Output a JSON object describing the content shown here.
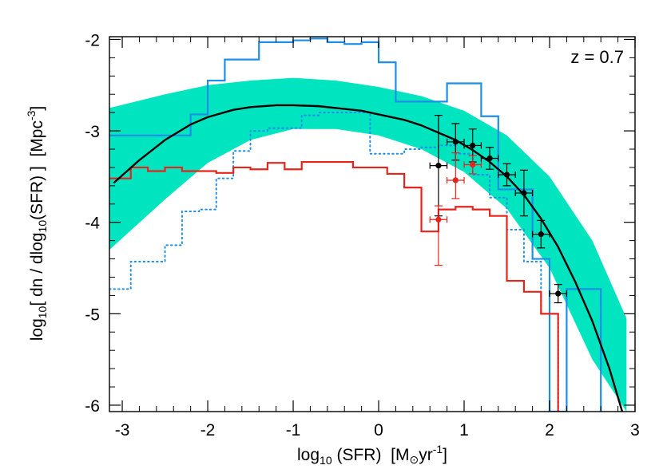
{
  "chart_data": {
    "type": "line",
    "annotation": "z = 0.7",
    "xlabel": {
      "pre": "log",
      "pre_sub": "10",
      "mid": " (SFR)  [M",
      "sun": "⊙",
      "post": "yr",
      "post_sup": "-1",
      "end": "]"
    },
    "ylabel": {
      "pre": "log",
      "pre_sub": "10",
      "mid1": "[ dn / dlog",
      "mid_sub": "10",
      "mid2": "(SFR) ]  [Mpc",
      "sup": "-3",
      "end": "]"
    },
    "xlim": [
      -3.15,
      3.0
    ],
    "ylim": [
      -6.07,
      -1.97
    ],
    "xticks": [
      -3,
      -2,
      -1,
      0,
      1,
      2,
      3
    ],
    "xtick_labels": [
      "-3",
      "-2",
      "-1",
      "0",
      "1",
      "2",
      "3"
    ],
    "yticks": [
      -6,
      -5,
      -4,
      -3,
      -2
    ],
    "ytick_labels": [
      "-6",
      "-5",
      "-4",
      "-3",
      "-2"
    ],
    "colors": {
      "band": "#00e5c0",
      "fit": "#000000",
      "blue": "#1e8ee8",
      "red": "#e8231a",
      "black_points": "#000000",
      "red_points": "#e8231a"
    },
    "band": {
      "x": [
        -3.15,
        -2.5,
        -2.0,
        -1.5,
        -1.0,
        -0.5,
        0.0,
        0.5,
        1.0,
        1.5,
        2.0,
        2.5,
        2.9
      ],
      "upper": [
        -2.75,
        -2.6,
        -2.5,
        -2.45,
        -2.42,
        -2.45,
        -2.52,
        -2.62,
        -2.78,
        -3.05,
        -3.5,
        -4.2,
        -5.05
      ],
      "lower": [
        -4.3,
        -3.75,
        -3.35,
        -3.1,
        -2.98,
        -2.98,
        -3.05,
        -3.2,
        -3.45,
        -3.85,
        -4.5,
        -5.5,
        -6.07
      ]
    },
    "series": [
      {
        "kind": "fit",
        "x": [
          -3.1,
          -2.8,
          -2.5,
          -2.2,
          -2.0,
          -1.7,
          -1.5,
          -1.2,
          -1.0,
          -0.7,
          -0.5,
          -0.2,
          0.0,
          0.3,
          0.5,
          0.7,
          0.9,
          1.1,
          1.3,
          1.5,
          1.7,
          1.9,
          2.1,
          2.3,
          2.5,
          2.7,
          2.85
        ],
        "y": [
          -3.57,
          -3.32,
          -3.1,
          -2.93,
          -2.85,
          -2.77,
          -2.74,
          -2.72,
          -2.72,
          -2.73,
          -2.75,
          -2.78,
          -2.82,
          -2.88,
          -2.94,
          -3.02,
          -3.1,
          -3.21,
          -3.34,
          -3.5,
          -3.7,
          -3.96,
          -4.27,
          -4.65,
          -5.08,
          -5.6,
          -6.07
        ]
      },
      {
        "kind": "step",
        "style": "solid",
        "color_key": "blue",
        "edges": [
          -3.15,
          -2.9,
          -2.6,
          -2.4,
          -2.2,
          -2.0,
          -1.8,
          -1.6,
          -1.4,
          -1.2,
          -1.0,
          -0.8,
          -0.6,
          -0.4,
          -0.2,
          0.0,
          0.2,
          0.4,
          0.6,
          0.8,
          1.0,
          1.2,
          1.4,
          1.6,
          1.8,
          2.0,
          2.2,
          2.4,
          2.6
        ],
        "values": [
          -3.05,
          -3.05,
          -3.05,
          -3.05,
          -2.82,
          -2.45,
          -2.22,
          -2.22,
          -2.03,
          -2.03,
          -2.01,
          -1.99,
          -2.03,
          -2.05,
          -2.03,
          -2.25,
          -2.68,
          -2.68,
          -2.68,
          -2.48,
          -2.48,
          -2.84,
          -3.64,
          -3.64,
          -4.4,
          -6.07,
          -4.73,
          -4.73,
          -6.07
        ]
      },
      {
        "kind": "step",
        "style": "dotted",
        "color_key": "blue",
        "edges": [
          -3.15,
          -2.9,
          -2.7,
          -2.5,
          -2.3,
          -2.1,
          -1.9,
          -1.7,
          -1.5,
          -1.3,
          -1.1,
          -0.9,
          -0.7,
          -0.5,
          -0.3,
          -0.1,
          0.1,
          0.3,
          0.5,
          0.7,
          0.9,
          1.1,
          1.3,
          1.5,
          1.7,
          1.9,
          2.1
        ],
        "values": [
          -4.73,
          -4.43,
          -4.43,
          -4.25,
          -3.88,
          -3.86,
          -3.52,
          -3.22,
          -3.0,
          -2.97,
          -2.97,
          -2.83,
          -2.8,
          -2.8,
          -2.8,
          -3.25,
          -3.25,
          -3.2,
          -3.18,
          -3.16,
          -3.25,
          -3.48,
          -3.73,
          -4.08,
          -4.43,
          -5.0,
          -6.07
        ]
      },
      {
        "kind": "step",
        "style": "solid",
        "color_key": "red",
        "edges": [
          -3.15,
          -2.9,
          -2.7,
          -2.5,
          -2.3,
          -2.1,
          -1.9,
          -1.7,
          -1.5,
          -1.3,
          -1.1,
          -0.9,
          -0.7,
          -0.5,
          -0.3,
          -0.1,
          0.1,
          0.3,
          0.5,
          0.7,
          0.9,
          1.1,
          1.3,
          1.5,
          1.7,
          1.9,
          2.1
        ],
        "values": [
          -3.52,
          -3.4,
          -3.44,
          -3.4,
          -3.44,
          -3.44,
          -3.46,
          -3.4,
          -3.42,
          -3.35,
          -3.42,
          -3.34,
          -3.34,
          -3.34,
          -3.4,
          -3.4,
          -3.47,
          -3.62,
          -4.1,
          -3.86,
          -3.83,
          -3.86,
          -3.93,
          -4.64,
          -4.76,
          -5.0,
          -6.07
        ]
      }
    ],
    "points": [
      {
        "color_key": "black_points",
        "x": 0.7,
        "y": -3.38,
        "xerr": 0.1,
        "yerr_lo": 0.55,
        "yerr_hi": 0.55
      },
      {
        "color_key": "black_points",
        "x": 0.9,
        "y": -3.12,
        "xerr": 0.1,
        "yerr_lo": 0.2,
        "yerr_hi": 0.2
      },
      {
        "color_key": "black_points",
        "x": 1.1,
        "y": -3.16,
        "xerr": 0.1,
        "yerr_lo": 0.18,
        "yerr_hi": 0.18
      },
      {
        "color_key": "black_points",
        "x": 1.3,
        "y": -3.3,
        "xerr": 0.1,
        "yerr_lo": 0.12,
        "yerr_hi": 0.12
      },
      {
        "color_key": "black_points",
        "x": 1.5,
        "y": -3.48,
        "xerr": 0.1,
        "yerr_lo": 0.12,
        "yerr_hi": 0.12
      },
      {
        "color_key": "black_points",
        "x": 1.7,
        "y": -3.68,
        "xerr": 0.1,
        "yerr_lo": 0.25,
        "yerr_hi": 0.25
      },
      {
        "color_key": "black_points",
        "x": 1.9,
        "y": -4.13,
        "xerr": 0.1,
        "yerr_lo": 0.15,
        "yerr_hi": 0.15
      },
      {
        "color_key": "black_points",
        "x": 2.1,
        "y": -4.78,
        "xerr": 0.1,
        "yerr_lo": 0.1,
        "yerr_hi": 0.1
      },
      {
        "color_key": "red_points",
        "x": 0.7,
        "y": -3.97,
        "xerr": 0.1,
        "yerr_lo": 0.5,
        "yerr_hi": 0.15
      },
      {
        "color_key": "red_points",
        "x": 0.9,
        "y": -3.54,
        "xerr": 0.1,
        "yerr_lo": 0.2,
        "yerr_hi": 0.3
      },
      {
        "color_key": "red_points",
        "x": 1.1,
        "y": -3.37,
        "xerr": 0.1,
        "yerr_lo": 0.1,
        "yerr_hi": 0.1
      }
    ]
  }
}
